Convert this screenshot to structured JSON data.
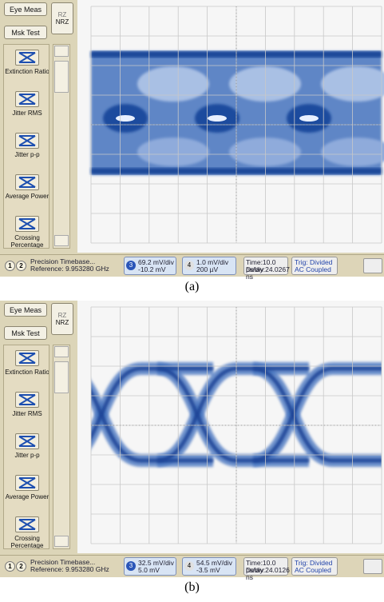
{
  "panels": [
    {
      "sidebar": {
        "eye_meas": "Eye Meas",
        "mode_top": "RZ",
        "mode_bottom": "NRZ",
        "mask_test": "Msk Test",
        "measurements": [
          "Extinction Ratio",
          "Jitter RMS",
          "Jitter p-p",
          "Average Power",
          "Crossing Percentage"
        ]
      },
      "status": {
        "channels": [
          "1",
          "2"
        ],
        "timebase": "Precision Timebase...",
        "reference": "Reference: 9.953280 GHz",
        "ch3": {
          "number": "3",
          "scale": "69.2 mV/div",
          "offset": "-10.2 mV"
        },
        "ch4": {
          "number": "4",
          "scale": "1.0 mV/div",
          "offset": "200 µV"
        },
        "time": "Time:10.0 ps/div",
        "delay": "Delay:24.0267 ns",
        "trigger": "Trig: Divided",
        "coupling": "AC Coupled"
      },
      "caption": "(a)"
    },
    {
      "sidebar": {
        "eye_meas": "Eye Meas",
        "mode_top": "RZ",
        "mode_bottom": "NRZ",
        "mask_test": "Msk Test",
        "measurements": [
          "Extinction Ratio",
          "Jitter RMS",
          "Jitter p-p",
          "Average Power",
          "Crossing Percentage"
        ]
      },
      "status": {
        "channels": [
          "1",
          "2"
        ],
        "timebase": "Precision Timebase...",
        "reference": "Reference: 9.953280 GHz",
        "ch3": {
          "number": "3",
          "scale": "32.5 mV/div",
          "offset": "5.0 mV"
        },
        "ch4": {
          "number": "4",
          "scale": "54.5 mV/div",
          "offset": "-3.5 mV"
        },
        "time": "Time:10.0 ps/div",
        "delay": "Delay:24.0126 ns",
        "trigger": "Trig: Divided",
        "coupling": "AC Coupled"
      },
      "caption": "(b)"
    }
  ]
}
